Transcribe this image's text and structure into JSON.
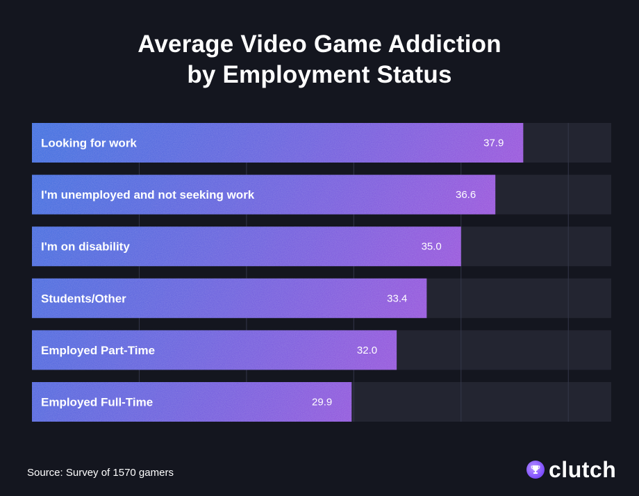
{
  "title_lines": [
    "Average Video Game Addiction",
    "by Employment Status"
  ],
  "source": "Source: Survey of 1570 gamers",
  "brand": {
    "name": "clutch",
    "icon": "trophy-icon"
  },
  "colors": {
    "background": "#14161f",
    "track": "#232531",
    "gridline": "#34374a",
    "gradient": [
      "#2f6de0",
      "#c73fdc"
    ]
  },
  "chart_data": {
    "type": "bar",
    "orientation": "horizontal",
    "title": "Average Video Game Addiction by Employment Status",
    "categories": [
      "Looking for work",
      "I'm unemployed and not seeking work",
      "I'm on disability",
      "Students/Other",
      "Employed Part-Time",
      "Employed Full-Time"
    ],
    "values": [
      37.9,
      36.6,
      35.0,
      33.4,
      32.0,
      29.9
    ],
    "value_labels": [
      "37.9",
      "36.6",
      "35.0",
      "33.4",
      "32.0",
      "29.9"
    ],
    "xlim": [
      15,
      42
    ],
    "xlabel": "",
    "ylabel": "",
    "grid": true
  }
}
